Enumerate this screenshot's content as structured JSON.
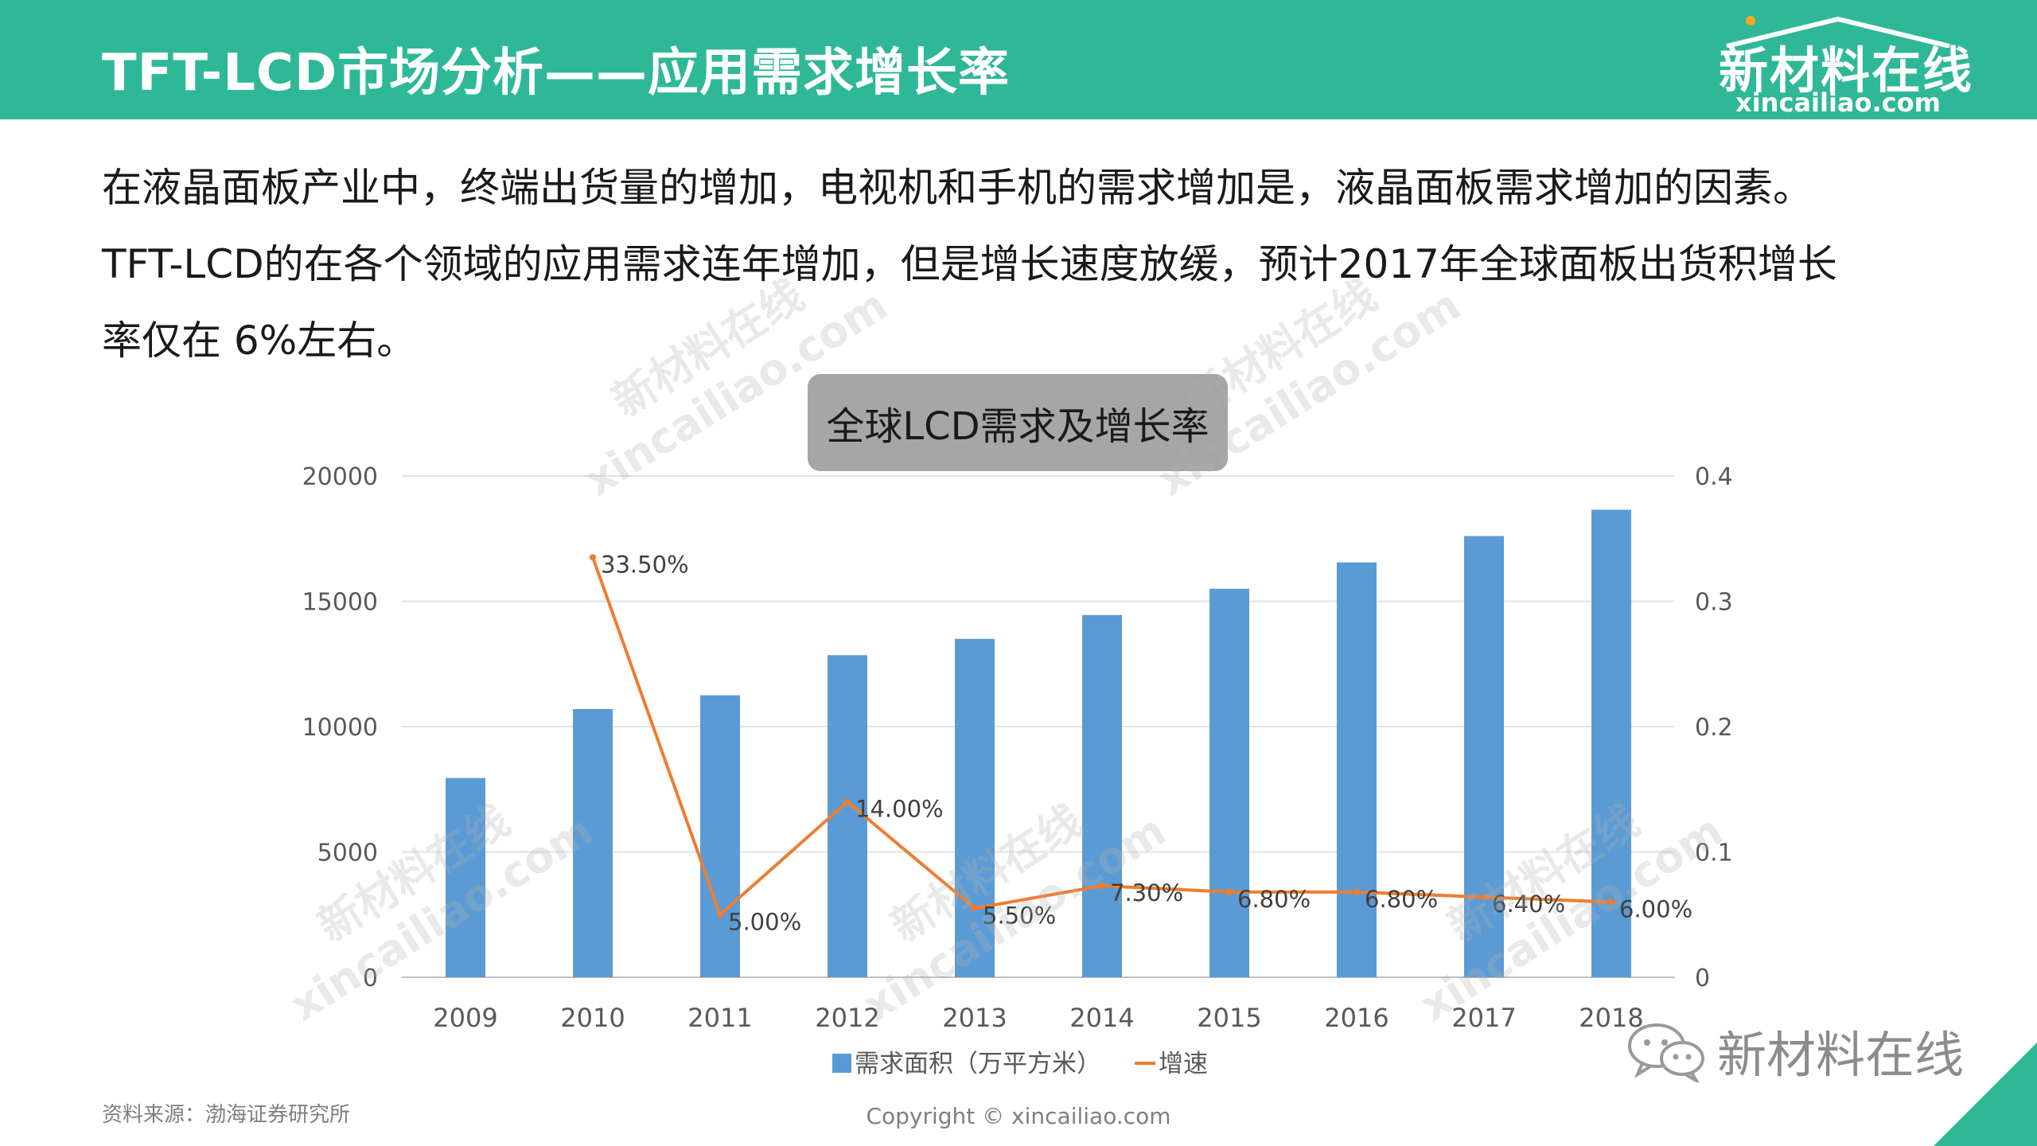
{
  "header": {
    "title": "TFT-LCD市场分析——应用需求增长率",
    "logo_main": "新材料在线",
    "logo_sub": "xincailiao.com"
  },
  "intro": {
    "line1": "在液晶面板产业中，终端出货量的增加，电视机和手机的需求增加是，液晶面板需求增加的因素。",
    "line2": "TFT-LCD的在各个领域的应用需求连年增加，但是增长速度放缓，预计2017年全球面板出货积增长",
    "line3": "率仅在 6%左右。"
  },
  "chart_data": {
    "type": "bar",
    "title": "全球LCD需求及增长率",
    "categories": [
      "2009",
      "2010",
      "2011",
      "2012",
      "2013",
      "2014",
      "2015",
      "2016",
      "2017",
      "2018"
    ],
    "series": [
      {
        "name": "需求面积（万平方米）",
        "type": "bar",
        "axis": "left",
        "values": [
          7950,
          10700,
          11250,
          12850,
          13500,
          14450,
          15500,
          16550,
          17600,
          18650
        ]
      },
      {
        "name": "增速",
        "type": "line",
        "axis": "right",
        "values": [
          null,
          0.335,
          0.05,
          0.14,
          0.055,
          0.073,
          0.068,
          0.068,
          0.064,
          0.06
        ],
        "labels": [
          "",
          "33.50%",
          "5.00%",
          "14.00%",
          "5.50%",
          "7.30%",
          "6.80%",
          "6.80%",
          "6.40%",
          "6.00%"
        ]
      }
    ],
    "y_left": {
      "ylim": [
        0,
        20000
      ],
      "ticks": [
        "0",
        "5000",
        "10000",
        "15000",
        "20000"
      ]
    },
    "y_right": {
      "ylim": [
        0,
        0.4
      ],
      "ticks": [
        "0",
        "0.1",
        "0.2",
        "0.3",
        "0.4"
      ]
    },
    "grid": true,
    "legend_position": "bottom",
    "colors": {
      "bar": "#5b9bd5",
      "line": "#ed7d31"
    }
  },
  "footer": {
    "source": "资料来源：渤海证券研究所",
    "copyright": "Copyright © xincailiao.com",
    "wechat_label": "新材料在线"
  },
  "watermarks": {
    "line1": "新材料在线",
    "line2": "xincailiao.com"
  },
  "colors": {
    "header_bg": "#2fb897",
    "text": "#1a1a1a",
    "muted": "#7f7f7f"
  },
  "icons": {
    "wechat": "wechat-icon",
    "logo_roof": "roof-icon"
  }
}
